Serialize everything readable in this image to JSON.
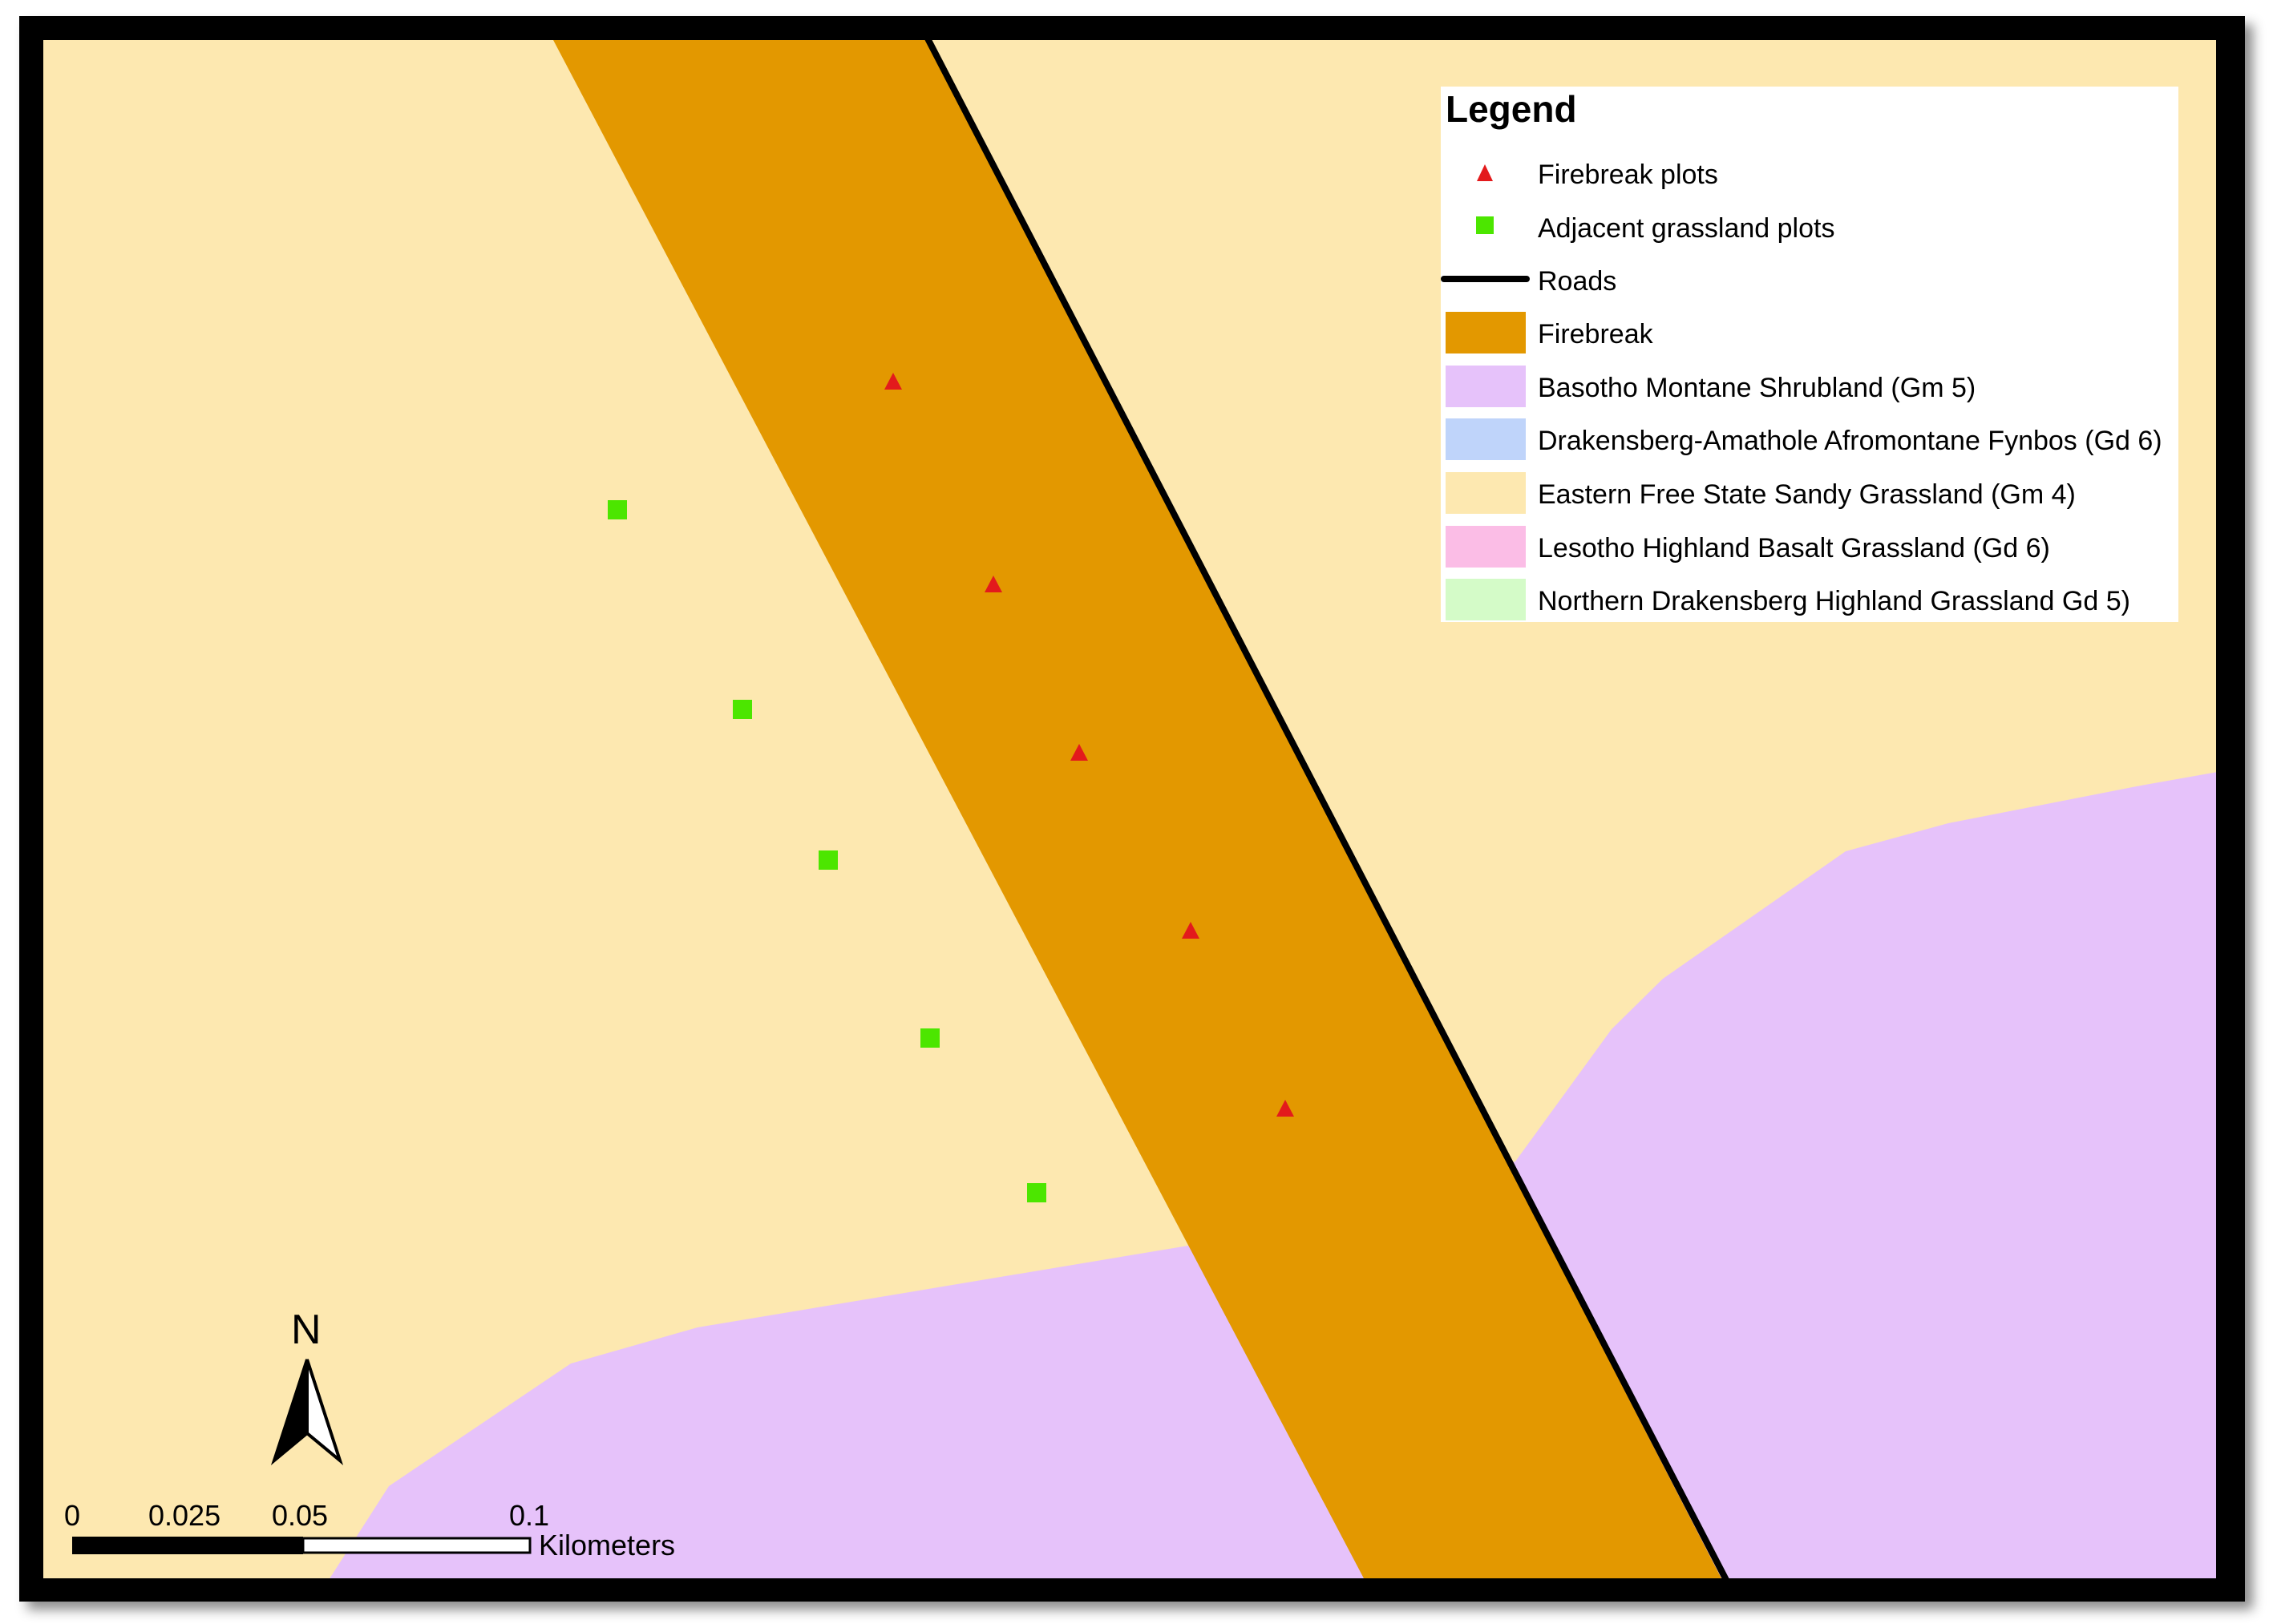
{
  "legend": {
    "title": "Legend",
    "items": [
      {
        "label": "Firebreak plots",
        "symbol": "triangle-marker",
        "color": "#e31a1c"
      },
      {
        "label": "Adjacent grassland plots",
        "symbol": "square-marker",
        "color": "#4ce600"
      },
      {
        "label": "Roads",
        "symbol": "line",
        "color": "#000000"
      },
      {
        "label": "Firebreak",
        "symbol": "fill",
        "color": "#e39800"
      },
      {
        "label": "Basotho Montane Shrubland (Gm 5)",
        "symbol": "fill",
        "color": "#e6c2fa"
      },
      {
        "label": "Drakensberg-Amathole Afromontane Fynbos (Gd 6)",
        "symbol": "fill",
        "color": "#bfd4fa"
      },
      {
        "label": "Eastern Free State Sandy Grassland (Gm 4)",
        "symbol": "fill",
        "color": "#fde8b0"
      },
      {
        "label": "Lesotho Highland Basalt Grassland (Gd 6)",
        "symbol": "fill",
        "color": "#fbbde6"
      },
      {
        "label": "Northern Drakensberg Highland Grassland Gd 5)",
        "symbol": "fill",
        "color": "#d4fbc8"
      }
    ]
  },
  "north_arrow": {
    "label": "N",
    "icon": "north-arrow-icon"
  },
  "scale_bar": {
    "ticks": [
      "0",
      "0.025",
      "0.05",
      "0.1"
    ],
    "unit": "Kilometers"
  },
  "colors": {
    "frame": "#000000",
    "grassland": "#fde8b0",
    "shrubland": "#e6c2fa",
    "firebreak": "#e39800",
    "road": "#000000",
    "firebreak_plot": "#e31a1c",
    "grassland_plot": "#4ce600"
  }
}
